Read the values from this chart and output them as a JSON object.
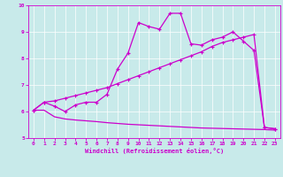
{
  "bg_color": "#c8eaea",
  "line_color": "#cc00cc",
  "xlim": [
    -0.5,
    23.5
  ],
  "ylim": [
    5,
    10
  ],
  "yticks": [
    5,
    6,
    7,
    8,
    9,
    10
  ],
  "xticks": [
    0,
    1,
    2,
    3,
    4,
    5,
    6,
    7,
    8,
    9,
    10,
    11,
    12,
    13,
    14,
    15,
    16,
    17,
    18,
    19,
    20,
    21,
    22,
    23
  ],
  "xlabel": "Windchill (Refroidissement éolien,°C)",
  "line1_x": [
    0,
    1,
    2,
    3,
    4,
    5,
    6,
    7,
    8,
    9,
    10,
    11,
    12,
    13,
    14,
    15,
    16,
    17,
    18,
    19,
    20,
    21,
    22,
    23
  ],
  "line1_y": [
    6.05,
    6.35,
    6.2,
    6.0,
    6.25,
    6.35,
    6.35,
    6.65,
    7.6,
    8.2,
    9.35,
    9.2,
    9.1,
    9.7,
    9.7,
    8.55,
    8.5,
    8.7,
    8.8,
    9.0,
    8.65,
    8.3,
    5.4,
    5.35
  ],
  "line2_x": [
    0,
    1,
    2,
    3,
    4,
    5,
    6,
    7,
    8,
    9,
    10,
    11,
    12,
    13,
    14,
    15,
    16,
    17,
    18,
    19,
    20,
    21,
    22,
    23
  ],
  "line2_y": [
    6.05,
    6.35,
    6.4,
    6.5,
    6.6,
    6.7,
    6.8,
    6.9,
    7.05,
    7.2,
    7.35,
    7.5,
    7.65,
    7.8,
    7.95,
    8.1,
    8.25,
    8.45,
    8.6,
    8.7,
    8.8,
    8.9,
    5.4,
    5.35
  ],
  "line3_x": [
    0,
    1,
    2,
    3,
    4,
    5,
    6,
    7,
    8,
    9,
    10,
    11,
    12,
    13,
    14,
    15,
    16,
    17,
    18,
    19,
    20,
    21,
    22,
    23
  ],
  "line3_y": [
    6.05,
    6.05,
    5.8,
    5.72,
    5.68,
    5.65,
    5.62,
    5.58,
    5.55,
    5.52,
    5.5,
    5.48,
    5.46,
    5.44,
    5.42,
    5.4,
    5.38,
    5.37,
    5.36,
    5.35,
    5.34,
    5.33,
    5.32,
    5.3
  ]
}
